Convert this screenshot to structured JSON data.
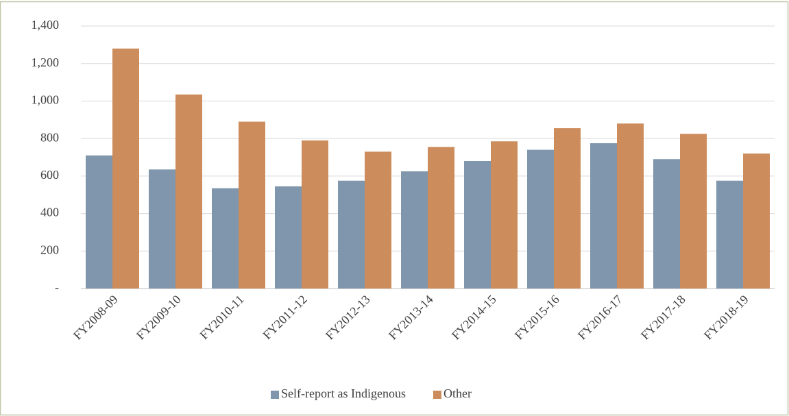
{
  "chart_data": {
    "type": "bar",
    "categories": [
      "FY2008-09",
      "FY2009-10",
      "FY2010-11",
      "FY2011-12",
      "FY2012-13",
      "FY2013-14",
      "FY2014-15",
      "FY2015-16",
      "FY2016-17",
      "FY2017-18",
      "FY2018-19"
    ],
    "series": [
      {
        "name": "Self-report as Indigenous",
        "color": "#7f96ac",
        "values": [
          710,
          635,
          535,
          545,
          575,
          625,
          680,
          740,
          775,
          690,
          575
        ]
      },
      {
        "name": "Other",
        "color": "#cc8c5b",
        "values": [
          1280,
          1035,
          890,
          790,
          730,
          755,
          785,
          855,
          880,
          825,
          720
        ]
      }
    ],
    "ylim": [
      0,
      1400
    ],
    "yticks": [
      {
        "value": 0,
        "label": "-"
      },
      200,
      400,
      600,
      800,
      {
        "value": 1000,
        "label": "1,000"
      },
      {
        "value": 1200,
        "label": "1,200"
      },
      {
        "value": 1400,
        "label": "1,400"
      }
    ],
    "grid": true,
    "legend": "bottom"
  }
}
